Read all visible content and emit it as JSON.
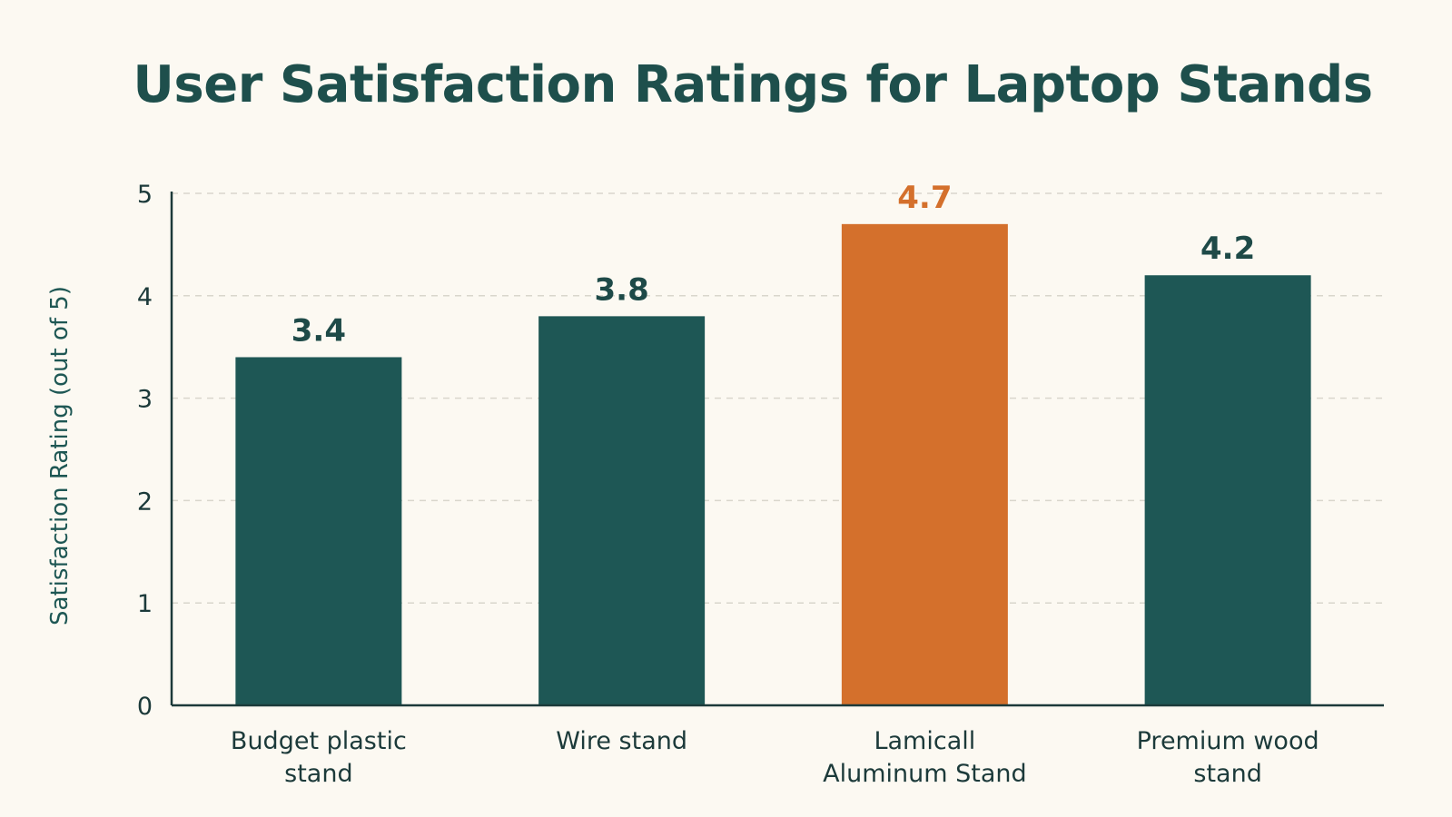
{
  "chart_data": {
    "type": "bar",
    "title": "User Satisfaction Ratings for Laptop Stands",
    "xlabel": "",
    "ylabel": "Satisfaction Rating (out of 5)",
    "ylim": [
      0,
      5
    ],
    "yticks": [
      0,
      1,
      2,
      3,
      4,
      5
    ],
    "grid": true,
    "categories": [
      [
        "Budget plastic",
        "stand"
      ],
      [
        "Wire stand"
      ],
      [
        "Lamicall",
        "Aluminum Stand"
      ],
      [
        "Premium wood",
        "stand"
      ]
    ],
    "values": [
      3.4,
      3.8,
      4.7,
      4.2
    ],
    "value_labels": [
      "3.4",
      "3.8",
      "4.7",
      "4.2"
    ],
    "highlight_index": 2,
    "colors": {
      "bar": "#1e5755",
      "highlight": "#d4702c",
      "value_label": "#1e4a48",
      "highlight_label": "#d4702c",
      "title": "#1e4f4c",
      "background": "#fcf9f2"
    }
  }
}
